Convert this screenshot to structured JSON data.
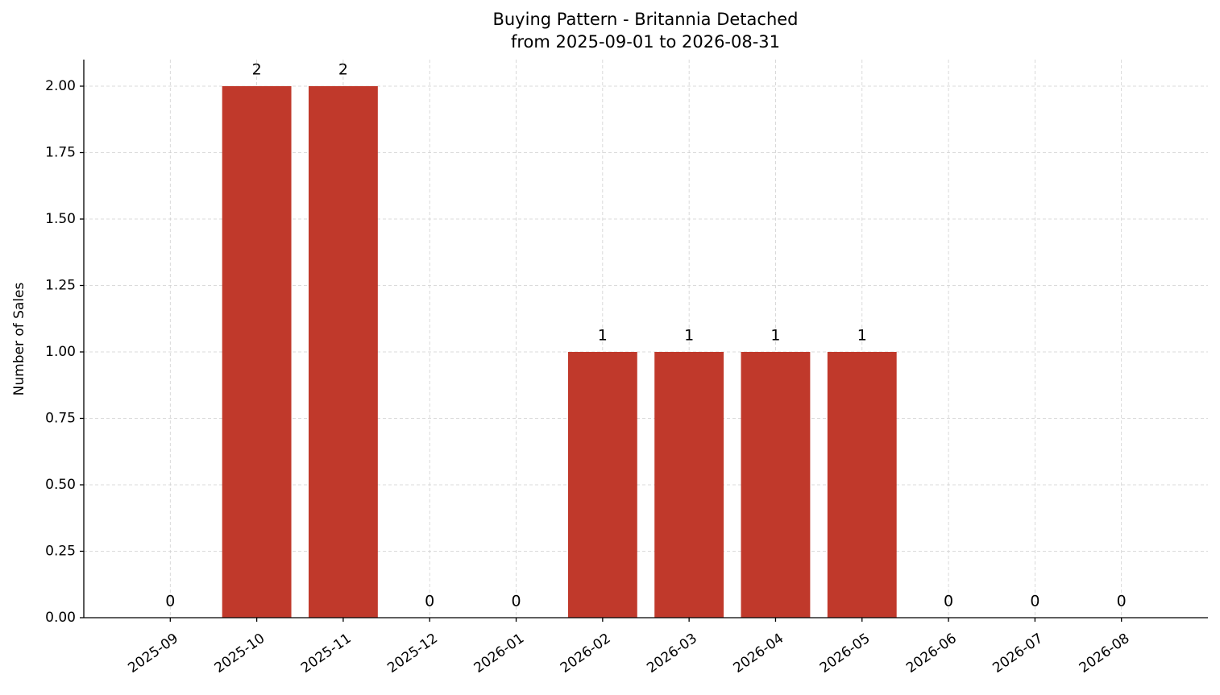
{
  "chart_data": {
    "type": "bar",
    "title": "Buying Pattern - Britannia Detached",
    "subtitle": "from 2025-09-01 to 2026-08-31",
    "y_label": "Number of Sales",
    "categories": [
      "2025-09",
      "2025-10",
      "2025-11",
      "2025-12",
      "2026-01",
      "2026-02",
      "2026-03",
      "2026-04",
      "2026-05",
      "2026-06",
      "2026-07",
      "2026-08"
    ],
    "values": [
      0,
      2,
      2,
      0,
      0,
      1,
      1,
      1,
      1,
      0,
      0,
      0
    ],
    "color": "#c0392b",
    "ylim": [
      0,
      2.1
    ],
    "yticks": [
      {
        "value": 0,
        "label": "0.00"
      },
      0.25,
      {
        "value": 0.5,
        "label": "0.50"
      },
      0.75,
      {
        "value": 1,
        "label": "1.00"
      },
      1.25,
      {
        "value": 1.5,
        "label": "1.50"
      },
      1.75,
      {
        "value": 2,
        "label": "2.00"
      }
    ],
    "grid": true
  }
}
